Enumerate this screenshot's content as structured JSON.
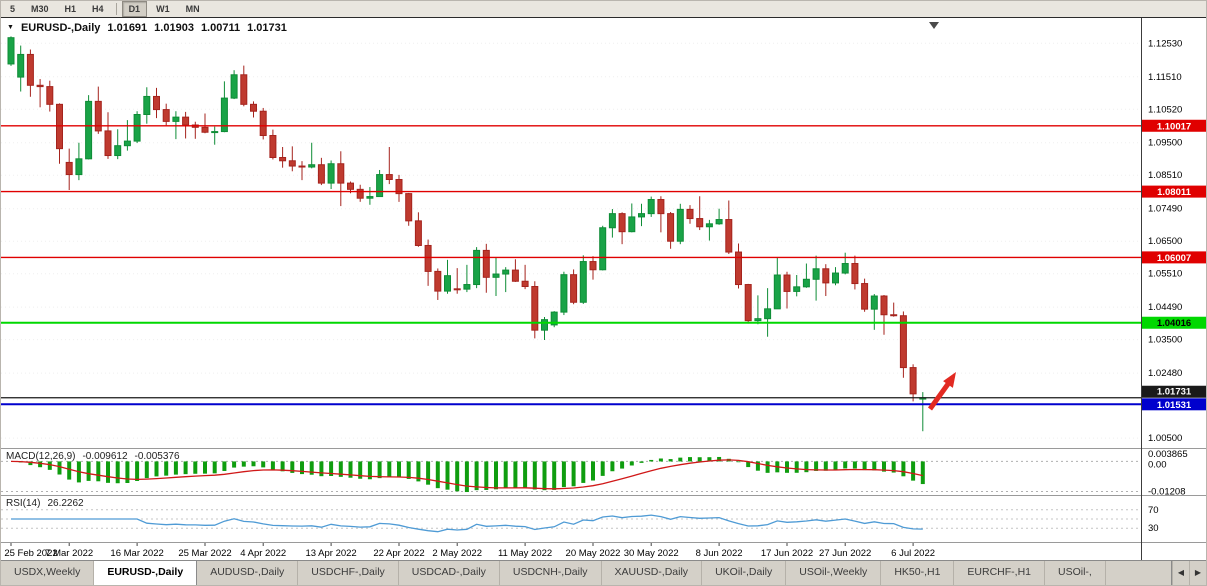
{
  "toolbar": {
    "timeframes": [
      {
        "label": "5",
        "active": false
      },
      {
        "label": "M30",
        "active": false
      },
      {
        "label": "H1",
        "active": false
      },
      {
        "label": "H4",
        "active": false
      },
      {
        "label": "D1",
        "active": true
      },
      {
        "label": "W1",
        "active": false
      },
      {
        "label": "MN",
        "active": false
      }
    ]
  },
  "chart": {
    "symbol_title": "EURUSD-,Daily",
    "ohlc_display": {
      "open": "1.01691",
      "high": "1.01903",
      "low": "1.00711",
      "close": "1.01731"
    },
    "price_axis_labels": [
      "1.12530",
      "1.11510",
      "1.10520",
      "1.09500",
      "1.08510",
      "1.07490",
      "1.06500",
      "1.05510",
      "1.04490",
      "1.03500",
      "1.02480",
      "1.00500"
    ],
    "price_range": {
      "top": 1.133,
      "bottom": 1.002
    },
    "hlines": [
      {
        "price": 1.10017,
        "label": "1.10017",
        "color": "#e00000",
        "badge_text": "#ffffff",
        "width": 1.4
      },
      {
        "price": 1.08011,
        "label": "1.08011",
        "color": "#e00000",
        "badge_text": "#ffffff",
        "width": 1.4
      },
      {
        "price": 1.06007,
        "label": "1.06007",
        "color": "#e00000",
        "badge_text": "#ffffff",
        "width": 1.4
      },
      {
        "price": 1.04016,
        "label": "1.04016",
        "color": "#00d800",
        "badge_text": "#000000",
        "width": 2
      },
      {
        "price": 1.01531,
        "label": "1.01531",
        "color": "#0000cd",
        "badge_text": "#ffffff",
        "width": 2
      }
    ],
    "current_price": {
      "price": 1.01731,
      "label": "1.01731",
      "color": "#1a1a1a",
      "badge_text": "#ffffff"
    },
    "colors": {
      "up_stroke": "#0e8c36",
      "up_fill": "#19a347",
      "down_stroke": "#a5231d",
      "down_fill": "#bf3a2f",
      "grid": "#efefef"
    },
    "arrow_color": "#e22a22"
  },
  "chart_data": {
    "type": "candlestick",
    "symbol": "EURUSD-",
    "timeframe": "Daily",
    "candles": [
      [
        1.119,
        1.1274,
        1.1184,
        1.127
      ],
      [
        1.115,
        1.1246,
        1.1106,
        1.1219
      ],
      [
        1.1219,
        1.1234,
        1.109,
        1.1125
      ],
      [
        1.1125,
        1.1144,
        1.1058,
        1.1121
      ],
      [
        1.1121,
        1.1139,
        1.1045,
        1.1067
      ],
      [
        1.1067,
        1.107,
        1.0886,
        1.0932
      ],
      [
        1.089,
        1.0932,
        1.0806,
        1.0853
      ],
      [
        1.0853,
        1.095,
        1.0836,
        1.0901
      ],
      [
        1.0901,
        1.1095,
        1.0899,
        1.1076
      ],
      [
        1.1076,
        1.1121,
        1.0977,
        1.0986
      ],
      [
        1.0986,
        1.1043,
        1.0901,
        1.0911
      ],
      [
        1.0911,
        1.0991,
        1.09,
        1.0941
      ],
      [
        1.0941,
        1.1019,
        1.0926,
        1.0955
      ],
      [
        1.0955,
        1.1046,
        1.0949,
        1.1036
      ],
      [
        1.1036,
        1.1119,
        1.1008,
        1.1091
      ],
      [
        1.1091,
        1.1117,
        1.1025,
        1.1051
      ],
      [
        1.1051,
        1.1069,
        1.1003,
        1.1015
      ],
      [
        1.1015,
        1.1046,
        1.0961,
        1.1028
      ],
      [
        1.1028,
        1.1044,
        1.0963,
        1.1004
      ],
      [
        1.1004,
        1.1014,
        1.0962,
        1.0997
      ],
      [
        1.0997,
        1.1039,
        1.0979,
        1.0982
      ],
      [
        1.0982,
        1.0999,
        1.0944,
        1.0984
      ],
      [
        1.0984,
        1.1137,
        1.0982,
        1.1086
      ],
      [
        1.1086,
        1.1171,
        1.1083,
        1.1157
      ],
      [
        1.1157,
        1.1185,
        1.1061,
        1.1067
      ],
      [
        1.1067,
        1.1076,
        1.1027,
        1.1046
      ],
      [
        1.1046,
        1.1056,
        1.096,
        1.0972
      ],
      [
        1.0972,
        1.099,
        1.0899,
        1.0905
      ],
      [
        1.0905,
        1.0937,
        1.0874,
        1.0895
      ],
      [
        1.0895,
        1.0939,
        1.0863,
        1.0879
      ],
      [
        1.0879,
        1.0894,
        1.0836,
        1.0876
      ],
      [
        1.0876,
        1.095,
        1.0872,
        1.0883
      ],
      [
        1.0883,
        1.0904,
        1.0821,
        1.0827
      ],
      [
        1.0827,
        1.0896,
        1.0809,
        1.0886
      ],
      [
        1.0886,
        1.0924,
        1.0757,
        1.0827
      ],
      [
        1.0827,
        1.0832,
        1.0796,
        1.0808
      ],
      [
        1.0808,
        1.0822,
        1.077,
        1.0781
      ],
      [
        1.0781,
        1.0815,
        1.0761,
        1.0786
      ],
      [
        1.0786,
        1.0867,
        1.0785,
        1.0853
      ],
      [
        1.0853,
        1.0937,
        1.0824,
        1.0838
      ],
      [
        1.0838,
        1.0852,
        1.077,
        1.0795
      ],
      [
        1.0795,
        1.0797,
        1.0697,
        1.0712
      ],
      [
        1.0712,
        1.0738,
        1.0633,
        1.0637
      ],
      [
        1.0637,
        1.0655,
        1.0514,
        1.0558
      ],
      [
        1.0558,
        1.0567,
        1.0471,
        1.0498
      ],
      [
        1.0498,
        1.0593,
        1.049,
        1.0545
      ],
      [
        1.0505,
        1.0568,
        1.049,
        1.0504
      ],
      [
        1.0504,
        1.0578,
        1.0495,
        1.0518
      ],
      [
        1.0518,
        1.0632,
        1.0507,
        1.0622
      ],
      [
        1.0622,
        1.0642,
        1.0493,
        1.054
      ],
      [
        1.054,
        1.0599,
        1.0483,
        1.055
      ],
      [
        1.055,
        1.0571,
        1.0495,
        1.0562
      ],
      [
        1.0562,
        1.0595,
        1.0526,
        1.0528
      ],
      [
        1.0528,
        1.0578,
        1.0504,
        1.0512
      ],
      [
        1.0512,
        1.0528,
        1.0354,
        1.0379
      ],
      [
        1.0379,
        1.0419,
        1.0349,
        1.0411
      ],
      [
        1.0395,
        1.0437,
        1.0388,
        1.0434
      ],
      [
        1.0434,
        1.0557,
        1.0425,
        1.0548
      ],
      [
        1.0548,
        1.0564,
        1.0458,
        1.0464
      ],
      [
        1.0464,
        1.0607,
        1.0459,
        1.0588
      ],
      [
        1.0588,
        1.0604,
        1.0533,
        1.0563
      ],
      [
        1.0563,
        1.0697,
        1.0561,
        1.0691
      ],
      [
        1.0691,
        1.0748,
        1.0661,
        1.0734
      ],
      [
        1.0734,
        1.0738,
        1.0641,
        1.0679
      ],
      [
        1.0679,
        1.0765,
        1.0677,
        1.0724
      ],
      [
        1.0724,
        1.0764,
        1.0696,
        1.0734
      ],
      [
        1.0734,
        1.0786,
        1.0724,
        1.0777
      ],
      [
        1.0777,
        1.0787,
        1.0677,
        1.0734
      ],
      [
        1.0734,
        1.0739,
        1.0627,
        1.065
      ],
      [
        1.065,
        1.0764,
        1.0641,
        1.0747
      ],
      [
        1.0747,
        1.076,
        1.0703,
        1.0719
      ],
      [
        1.0719,
        1.0787,
        1.0684,
        1.0694
      ],
      [
        1.0694,
        1.0715,
        1.0652,
        1.0703
      ],
      [
        1.0703,
        1.0749,
        1.07,
        1.0716
      ],
      [
        1.0716,
        1.0774,
        1.0611,
        1.0617
      ],
      [
        1.0617,
        1.0643,
        1.0506,
        1.0518
      ],
      [
        1.0518,
        1.052,
        1.0399,
        1.0408
      ],
      [
        1.0408,
        1.0485,
        1.0397,
        1.0414
      ],
      [
        1.0414,
        1.0507,
        1.0359,
        1.0444
      ],
      [
        1.0444,
        1.0601,
        1.0444,
        1.0547
      ],
      [
        1.0547,
        1.0557,
        1.0445,
        1.0497
      ],
      [
        1.0497,
        1.0547,
        1.0482,
        1.0511
      ],
      [
        1.0511,
        1.0582,
        1.0508,
        1.0534
      ],
      [
        1.0534,
        1.0606,
        1.0469,
        1.0566
      ],
      [
        1.0566,
        1.058,
        1.0483,
        1.0523
      ],
      [
        1.0523,
        1.0571,
        1.0516,
        1.0553
      ],
      [
        1.0553,
        1.0615,
        1.0549,
        1.0582
      ],
      [
        1.0582,
        1.0606,
        1.0503,
        1.0521
      ],
      [
        1.0521,
        1.0536,
        1.0435,
        1.0443
      ],
      [
        1.0443,
        1.0489,
        1.038,
        1.0483
      ],
      [
        1.0483,
        1.0486,
        1.0365,
        1.0426
      ],
      [
        1.0426,
        1.0463,
        1.042,
        1.0423
      ],
      [
        1.0423,
        1.0436,
        1.0234,
        1.0265
      ],
      [
        1.0265,
        1.0275,
        1.0162,
        1.0185
      ],
      [
        1.01691,
        1.01903,
        1.00711,
        1.01731
      ]
    ],
    "date_ticks": [
      {
        "index": 0,
        "label": "25 Feb 2022"
      },
      {
        "index": 6,
        "label": "7 Mar 2022"
      },
      {
        "index": 13,
        "label": "16 Mar 2022"
      },
      {
        "index": 20,
        "label": "25 Mar 2022"
      },
      {
        "index": 26,
        "label": "4 Apr 2022"
      },
      {
        "index": 33,
        "label": "13 Apr 2022"
      },
      {
        "index": 40,
        "label": "22 Apr 2022"
      },
      {
        "index": 46,
        "label": "2 May 2022"
      },
      {
        "index": 53,
        "label": "11 May 2022"
      },
      {
        "index": 60,
        "label": "20 May 2022"
      },
      {
        "index": 66,
        "label": "30 May 2022"
      },
      {
        "index": 73,
        "label": "8 Jun 2022"
      },
      {
        "index": 80,
        "label": "17 Jun 2022"
      },
      {
        "index": 86,
        "label": "27 Jun 2022"
      },
      {
        "index": 93,
        "label": "6 Jul 2022"
      }
    ]
  },
  "macd": {
    "label": "MACD(12,26,9)",
    "value_main": "-0.009612",
    "value_signal": "-0.005376",
    "axis_labels": [
      "0.003865",
      "0.00",
      "-0.01208"
    ],
    "range": {
      "top": 0.005,
      "bottom": -0.0135
    },
    "bottom_level": -0.01208,
    "histogram_color": "#0f9d0f",
    "signal_color": "#d01818"
  },
  "rsi": {
    "label": "RSI(14)",
    "value": "26.2262",
    "levels": [
      70,
      50,
      30
    ],
    "axis_labels": [
      "70",
      "30"
    ],
    "line_color": "#4f9bd5"
  },
  "tabs": {
    "items": [
      {
        "label": "USDX,Weekly",
        "active": false
      },
      {
        "label": "EURUSD-,Daily",
        "active": true
      },
      {
        "label": "AUDUSD-,Daily",
        "active": false
      },
      {
        "label": "USDCHF-,Daily",
        "active": false
      },
      {
        "label": "USDCAD-,Daily",
        "active": false
      },
      {
        "label": "USDCNH-,Daily",
        "active": false
      },
      {
        "label": "XAUUSD-,Daily",
        "active": false
      },
      {
        "label": "UKOil-,Daily",
        "active": false
      },
      {
        "label": "USOil-,Weekly",
        "active": false
      },
      {
        "label": "HK50-,H1",
        "active": false
      },
      {
        "label": "EURCHF-,H1",
        "active": false
      },
      {
        "label": "USOil-,",
        "active": false
      }
    ],
    "scroll_left": "◀",
    "scroll_right": "▶"
  }
}
